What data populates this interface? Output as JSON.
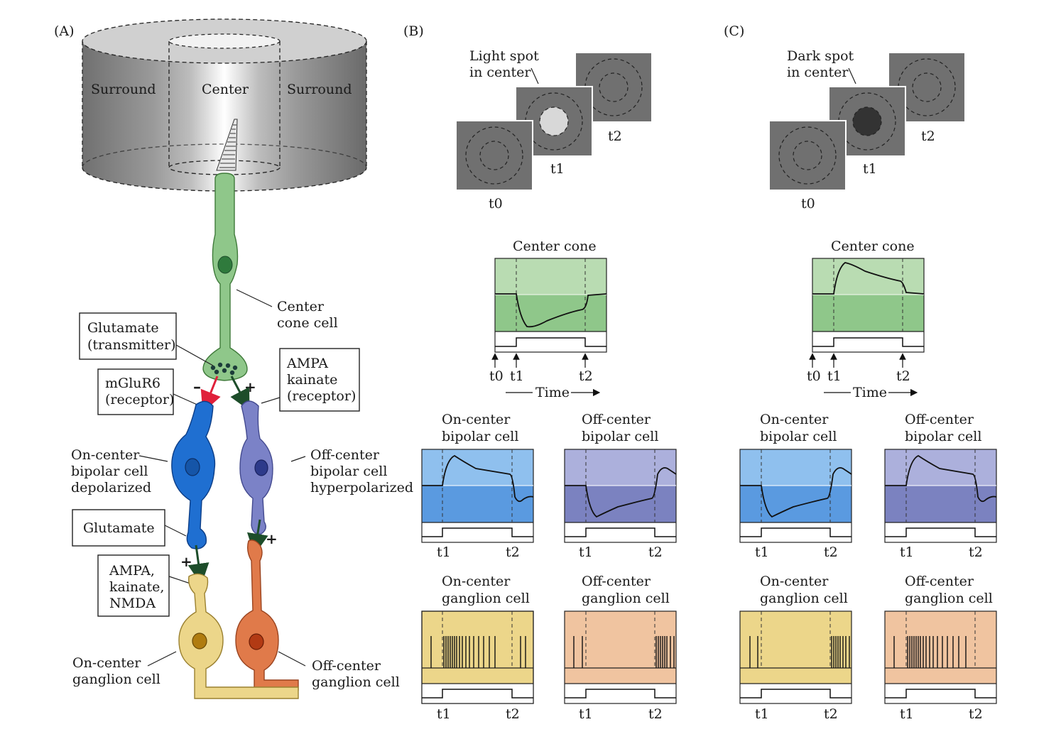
{
  "panels": {
    "a_label": "(A)",
    "b_label": "(B)",
    "c_label": "(C)"
  },
  "panel_a": {
    "surround_left": "Surround",
    "center": "Center",
    "surround_right": "Surround",
    "center_cone_cell": [
      "Center",
      "cone cell"
    ],
    "glutamate_transmitter": [
      "Glutamate",
      "(transmitter)"
    ],
    "mglur6": [
      "mGluR6",
      "(receptor)"
    ],
    "ampa_kainate_receptor": [
      "AMPA",
      "kainate",
      "(receptor)"
    ],
    "on_bipolar": [
      "On-center",
      "bipolar cell",
      "depolarized"
    ],
    "off_bipolar": [
      "Off-center",
      "bipolar cell",
      "hyperpolarized"
    ],
    "glutamate": "Glutamate",
    "ampa_kainate_nmda": [
      "AMPA,",
      "kainate,",
      "NMDA"
    ],
    "on_ganglion": [
      "On-center",
      "ganglion cell"
    ],
    "off_ganglion": [
      "Off-center",
      "ganglion cell"
    ],
    "minus": "–",
    "plus": "+",
    "colors": {
      "cone": "#8fc78a",
      "on_bipolar": "#1f6fd1",
      "off_bipolar": "#7b82c7",
      "on_ganglion": "#ecd68a",
      "off_ganglion": "#e07a4a",
      "inhibit_arrow": "#e0203a",
      "excite_arrow": "#1d4d2a"
    }
  },
  "panel_b": {
    "spot_label": [
      "Light spot",
      "in center"
    ],
    "t0": "t0",
    "t1": "t1",
    "t2": "t2",
    "center_cone": "Center cone",
    "time": "Time",
    "on_bipolar": [
      "On-center",
      "bipolar cell"
    ],
    "off_bipolar": [
      "Off-center",
      "bipolar cell"
    ],
    "on_ganglion": [
      "On-center",
      "ganglion cell"
    ],
    "off_ganglion": [
      "Off-center",
      "ganglion cell"
    ]
  },
  "panel_c": {
    "spot_label": [
      "Dark spot",
      "in center"
    ],
    "t0": "t0",
    "t1": "t1",
    "t2": "t2",
    "center_cone": "Center cone",
    "time": "Time",
    "on_bipolar": [
      "On-center",
      "bipolar cell"
    ],
    "off_bipolar": [
      "Off-center",
      "bipolar cell"
    ],
    "on_ganglion": [
      "On-center",
      "ganglion cell"
    ],
    "off_ganglion": [
      "Off-center",
      "ganglion cell"
    ]
  }
}
